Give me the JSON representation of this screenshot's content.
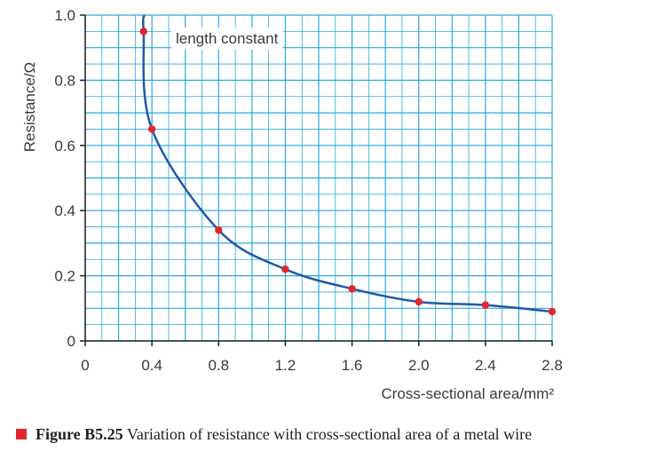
{
  "chart_data": {
    "type": "scatter",
    "xlabel": "Cross-sectional area/mm²",
    "ylabel": "Resistance/Ω",
    "xlim": [
      0,
      2.8
    ],
    "ylim": [
      0,
      1.0
    ],
    "x_ticks": [
      "0",
      "0.4",
      "0.8",
      "1.2",
      "1.6",
      "2.0",
      "2.4",
      "2.8"
    ],
    "y_ticks": [
      "0",
      "0.2",
      "0.4",
      "0.6",
      "0.8",
      "1.0"
    ],
    "grid": true,
    "annotation": "length constant",
    "series": [
      {
        "points": [
          {
            "x": 0.35,
            "y": 0.95
          },
          {
            "x": 0.4,
            "y": 0.65
          },
          {
            "x": 0.8,
            "y": 0.34
          },
          {
            "x": 1.2,
            "y": 0.22
          },
          {
            "x": 1.6,
            "y": 0.16
          },
          {
            "x": 2.0,
            "y": 0.12
          },
          {
            "x": 2.4,
            "y": 0.11
          },
          {
            "x": 2.8,
            "y": 0.09
          }
        ],
        "marker_color": "#e3262b",
        "line_color": "#1f5aa6"
      }
    ],
    "grid_color": "#2aa9e0"
  },
  "caption": {
    "label": "Figure B5.25",
    "text": "Variation of resistance with cross-sectional area of a metal wire",
    "marker_color": "#e3262b"
  }
}
